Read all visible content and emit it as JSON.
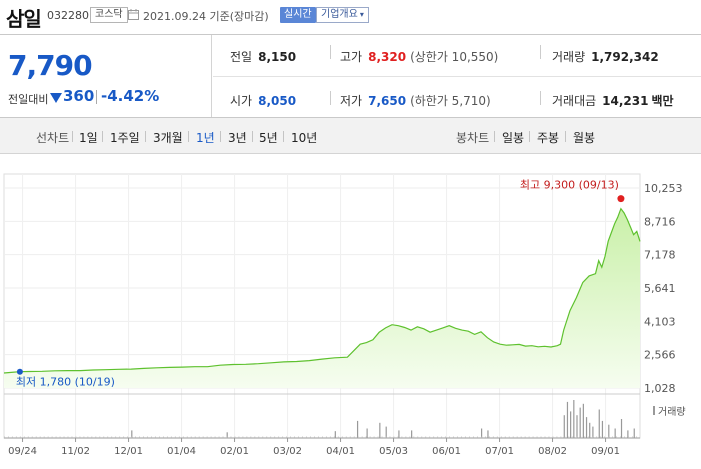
{
  "header": {
    "name": "삼일",
    "code": "032280",
    "market": "코스닥",
    "date": "2021.09.24 기준(장마감)",
    "realtime_label": "실시간",
    "corp_label": "기업개요"
  },
  "summary": {
    "price": "7,790",
    "change_label": "전일대비",
    "change_value": "360",
    "change_pct": "-4.42%",
    "direction": "down",
    "prev_label": "전일",
    "prev_value": "8,150",
    "high_label": "고가",
    "high_value": "8,320",
    "high_sub": "(상한가 10,550)",
    "volume_label": "거래량",
    "volume_value": "1,792,342",
    "open_label": "시가",
    "open_value": "8,050",
    "low_label": "저가",
    "low_value": "7,650",
    "low_sub": "(하한가 5,710)",
    "amount_label": "거래대금",
    "amount_value": "14,231",
    "amount_unit": "백만"
  },
  "toolbar": {
    "line_label": "선차트",
    "periods": [
      "1일",
      "1주일",
      "3개월",
      "1년",
      "3년",
      "5년",
      "10년"
    ],
    "active_period": "1년",
    "candle_label": "봉차트",
    "candles": [
      "일봉",
      "주봉",
      "월봉"
    ]
  },
  "colors": {
    "up": "#e02020",
    "down": "#1859c6",
    "line": "#5ec12e",
    "fill_top": "#c9f0a8",
    "fill_bottom": "#f6fdf0"
  },
  "chart_data": {
    "type": "area",
    "x_ticks": [
      "09/24",
      "11/02",
      "12/01",
      "01/04",
      "02/01",
      "03/02",
      "04/01",
      "05/03",
      "06/01",
      "07/01",
      "08/02",
      "09/01"
    ],
    "y_ticks": [
      10253,
      8716,
      7178,
      5641,
      4103,
      2566,
      1028
    ],
    "y_tick_labels": [
      "10,253",
      "8,716",
      "7,178",
      "5,641",
      "4,103",
      "2,566",
      "1,028"
    ],
    "ylim": [
      1028,
      10253
    ],
    "max_label": "최고 9,300 (09/13)",
    "min_label": "최저 1,780 (10/19)",
    "volume_legend": "거래량",
    "price_series": [
      [
        0,
        1720
      ],
      [
        0.016,
        1760
      ],
      [
        0.025,
        1780
      ],
      [
        0.04,
        1790
      ],
      [
        0.06,
        1800
      ],
      [
        0.08,
        1820
      ],
      [
        0.1,
        1830
      ],
      [
        0.12,
        1830
      ],
      [
        0.14,
        1860
      ],
      [
        0.16,
        1870
      ],
      [
        0.18,
        1890
      ],
      [
        0.2,
        1900
      ],
      [
        0.22,
        1930
      ],
      [
        0.24,
        1960
      ],
      [
        0.26,
        1980
      ],
      [
        0.28,
        1990
      ],
      [
        0.3,
        2010
      ],
      [
        0.32,
        2010
      ],
      [
        0.34,
        2080
      ],
      [
        0.36,
        2110
      ],
      [
        0.38,
        2120
      ],
      [
        0.4,
        2150
      ],
      [
        0.42,
        2190
      ],
      [
        0.44,
        2230
      ],
      [
        0.46,
        2250
      ],
      [
        0.48,
        2290
      ],
      [
        0.5,
        2360
      ],
      [
        0.52,
        2420
      ],
      [
        0.54,
        2450
      ],
      [
        0.555,
        2900
      ],
      [
        0.56,
        3050
      ],
      [
        0.57,
        3120
      ],
      [
        0.58,
        3250
      ],
      [
        0.59,
        3600
      ],
      [
        0.6,
        3800
      ],
      [
        0.61,
        3950
      ],
      [
        0.62,
        3900
      ],
      [
        0.63,
        3820
      ],
      [
        0.64,
        3700
      ],
      [
        0.65,
        3850
      ],
      [
        0.66,
        3760
      ],
      [
        0.67,
        3600
      ],
      [
        0.68,
        3700
      ],
      [
        0.69,
        3800
      ],
      [
        0.7,
        3900
      ],
      [
        0.71,
        3780
      ],
      [
        0.72,
        3700
      ],
      [
        0.73,
        3650
      ],
      [
        0.74,
        3500
      ],
      [
        0.75,
        3620
      ],
      [
        0.76,
        3350
      ],
      [
        0.77,
        3150
      ],
      [
        0.78,
        3050
      ],
      [
        0.79,
        3000
      ],
      [
        0.8,
        3020
      ],
      [
        0.81,
        3040
      ],
      [
        0.82,
        2960
      ],
      [
        0.83,
        2980
      ],
      [
        0.84,
        2930
      ],
      [
        0.85,
        2950
      ],
      [
        0.86,
        2920
      ],
      [
        0.87,
        2980
      ],
      [
        0.875,
        3050
      ],
      [
        0.88,
        3700
      ],
      [
        0.89,
        4600
      ],
      [
        0.9,
        5200
      ],
      [
        0.91,
        5900
      ],
      [
        0.92,
        6200
      ],
      [
        0.93,
        6300
      ],
      [
        0.935,
        6900
      ],
      [
        0.94,
        6600
      ],
      [
        0.945,
        7100
      ],
      [
        0.95,
        7800
      ],
      [
        0.955,
        8200
      ],
      [
        0.96,
        8600
      ],
      [
        0.965,
        8900
      ],
      [
        0.97,
        9300
      ],
      [
        0.975,
        9100
      ],
      [
        0.98,
        8800
      ],
      [
        0.985,
        8450
      ],
      [
        0.99,
        8100
      ],
      [
        0.995,
        8250
      ],
      [
        1,
        7790
      ]
    ],
    "volume_series": [
      [
        0.2,
        0.2
      ],
      [
        0.35,
        0.15
      ],
      [
        0.52,
        0.18
      ],
      [
        0.555,
        0.45
      ],
      [
        0.57,
        0.25
      ],
      [
        0.59,
        0.4
      ],
      [
        0.6,
        0.3
      ],
      [
        0.62,
        0.2
      ],
      [
        0.64,
        0.2
      ],
      [
        0.75,
        0.25
      ],
      [
        0.76,
        0.2
      ],
      [
        0.88,
        0.6
      ],
      [
        0.885,
        0.95
      ],
      [
        0.89,
        0.7
      ],
      [
        0.895,
        1.0
      ],
      [
        0.9,
        0.6
      ],
      [
        0.905,
        0.8
      ],
      [
        0.91,
        0.9
      ],
      [
        0.915,
        0.55
      ],
      [
        0.92,
        0.4
      ],
      [
        0.925,
        0.3
      ],
      [
        0.935,
        0.75
      ],
      [
        0.94,
        0.45
      ],
      [
        0.95,
        0.35
      ],
      [
        0.96,
        0.25
      ],
      [
        0.97,
        0.5
      ],
      [
        0.98,
        0.2
      ],
      [
        0.99,
        0.25
      ]
    ]
  }
}
